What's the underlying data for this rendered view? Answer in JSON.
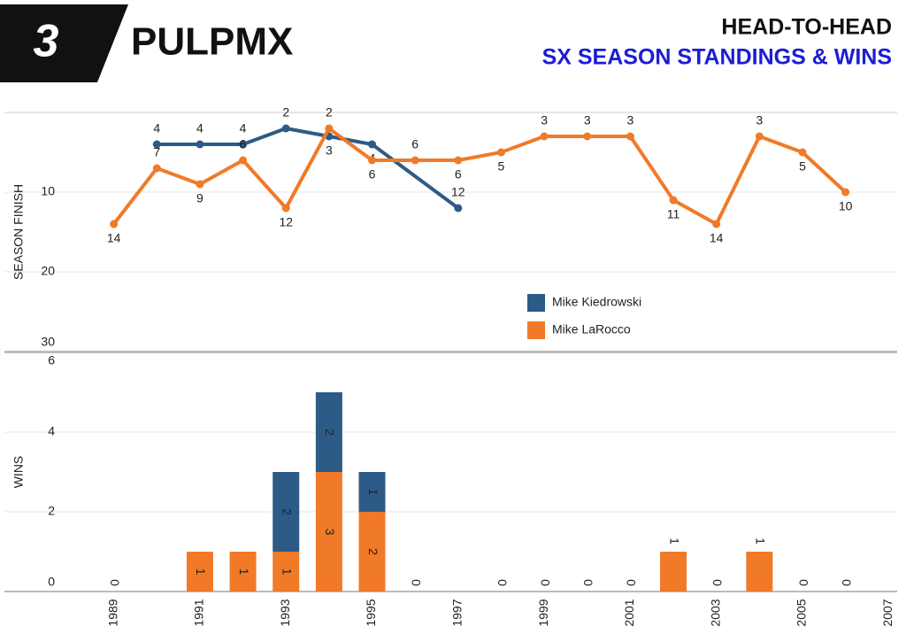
{
  "header": {
    "logo": "PULPMX",
    "title": "HEAD-TO-HEAD",
    "subtitle": "SX SEASON STANDINGS & WINS"
  },
  "chart_data": [
    {
      "type": "line",
      "y_label": "SEASON FINISH",
      "y_reversed": true,
      "xlim": [
        1988,
        2007.2
      ],
      "ylim": [
        0,
        30
      ],
      "yticks": [
        10,
        20,
        30
      ],
      "grid": true,
      "legend": "center",
      "series": [
        {
          "name": "Mike Kiedrowski",
          "color": "#2d5b87",
          "x": [
            1990,
            1991,
            1992,
            1993,
            1994,
            1995,
            1997
          ],
          "values": [
            4,
            4,
            4,
            2,
            3,
            4,
            12
          ]
        },
        {
          "name": "Mike LaRocco",
          "color": "#f07a28",
          "x": [
            1989,
            1990,
            1991,
            1992,
            1993,
            1994,
            1995,
            1996,
            1997,
            1998,
            1999,
            2000,
            2001,
            2002,
            2003,
            2004,
            2005,
            2006
          ],
          "values": [
            14,
            7,
            9,
            6,
            12,
            2,
            6,
            6,
            6,
            5,
            3,
            3,
            3,
            11,
            14,
            3,
            5,
            10
          ]
        }
      ]
    },
    {
      "type": "stacked_bar",
      "y_label": "WINS",
      "xlim": [
        1988,
        2007.2
      ],
      "xticks": [
        1989,
        1991,
        1993,
        1995,
        1997,
        1999,
        2001,
        2003,
        2005,
        2007
      ],
      "ylim": [
        0,
        6
      ],
      "yticks": [
        0,
        2,
        4,
        6
      ],
      "grid": true,
      "x": [
        1989,
        1990,
        1991,
        1992,
        1993,
        1994,
        1995,
        1996,
        1997,
        1998,
        1999,
        2000,
        2001,
        2002,
        2003,
        2004,
        2005,
        2006
      ],
      "series": [
        {
          "name": "Mike LaRocco",
          "color": "#f07a28",
          "values": [
            0,
            null,
            1,
            1,
            1,
            3,
            2,
            0,
            null,
            0,
            0,
            0,
            0,
            1,
            0,
            1,
            0,
            0
          ]
        },
        {
          "name": "Mike Kiedrowski",
          "color": "#2d5b87",
          "values": [
            null,
            null,
            0,
            0,
            2,
            2,
            1,
            null,
            null,
            null,
            null,
            null,
            null,
            null,
            null,
            null,
            null,
            null
          ]
        }
      ]
    }
  ]
}
